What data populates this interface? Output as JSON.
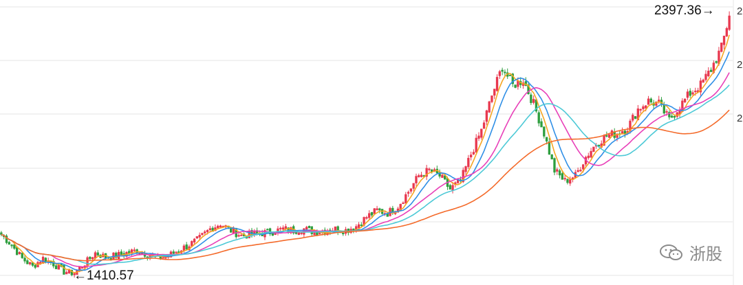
{
  "chart_data": {
    "type": "candlestick",
    "title": "",
    "xlabel": "",
    "ylabel": "",
    "ylim": [
      1370,
      2440
    ],
    "y_ticks_visible": [
      "2",
      "2",
      "2"
    ],
    "grid": true,
    "annotations": [
      {
        "text": "2397.36→",
        "value": 2397.36,
        "kind": "high"
      },
      {
        "text": "←1410.57",
        "value": 1410.57,
        "kind": "low"
      }
    ],
    "series_colors": {
      "up": "#e8384f",
      "down": "#2e9e3f",
      "ma_fast": "#f5a623",
      "ma_mid1": "#2f8fe6",
      "ma_mid2": "#e83fb8",
      "ma_mid3": "#4cc9d6",
      "ma_slow": "#f46a2a"
    },
    "ohlc_anchors": [
      {
        "t": 0,
        "c": 1560
      },
      {
        "t": 4,
        "c": 1520
      },
      {
        "t": 8,
        "c": 1470
      },
      {
        "t": 12,
        "c": 1440
      },
      {
        "t": 16,
        "c": 1470
      },
      {
        "t": 20,
        "c": 1450
      },
      {
        "t": 24,
        "c": 1420
      },
      {
        "t": 28,
        "c": 1415
      },
      {
        "t": 32,
        "c": 1450
      },
      {
        "t": 36,
        "c": 1490
      },
      {
        "t": 40,
        "c": 1475
      },
      {
        "t": 44,
        "c": 1480
      },
      {
        "t": 48,
        "c": 1490
      },
      {
        "t": 52,
        "c": 1500
      },
      {
        "t": 56,
        "c": 1485
      },
      {
        "t": 60,
        "c": 1470
      },
      {
        "t": 64,
        "c": 1480
      },
      {
        "t": 68,
        "c": 1500
      },
      {
        "t": 72,
        "c": 1520
      },
      {
        "t": 76,
        "c": 1545
      },
      {
        "t": 80,
        "c": 1580
      },
      {
        "t": 84,
        "c": 1600
      },
      {
        "t": 88,
        "c": 1575
      },
      {
        "t": 92,
        "c": 1555
      },
      {
        "t": 96,
        "c": 1560
      },
      {
        "t": 100,
        "c": 1565
      },
      {
        "t": 104,
        "c": 1570
      },
      {
        "t": 108,
        "c": 1580
      },
      {
        "t": 112,
        "c": 1575
      },
      {
        "t": 116,
        "c": 1580
      },
      {
        "t": 120,
        "c": 1570
      },
      {
        "t": 124,
        "c": 1575
      },
      {
        "t": 128,
        "c": 1580
      },
      {
        "t": 132,
        "c": 1575
      },
      {
        "t": 136,
        "c": 1590
      },
      {
        "t": 140,
        "c": 1625
      },
      {
        "t": 144,
        "c": 1650
      },
      {
        "t": 148,
        "c": 1640
      },
      {
        "t": 152,
        "c": 1665
      },
      {
        "t": 156,
        "c": 1720
      },
      {
        "t": 160,
        "c": 1780
      },
      {
        "t": 164,
        "c": 1800
      },
      {
        "t": 168,
        "c": 1780
      },
      {
        "t": 172,
        "c": 1730
      },
      {
        "t": 176,
        "c": 1760
      },
      {
        "t": 180,
        "c": 1860
      },
      {
        "t": 184,
        "c": 1950
      },
      {
        "t": 188,
        "c": 2080
      },
      {
        "t": 192,
        "c": 2190
      },
      {
        "t": 196,
        "c": 2120
      },
      {
        "t": 200,
        "c": 2140
      },
      {
        "t": 204,
        "c": 2050
      },
      {
        "t": 208,
        "c": 1940
      },
      {
        "t": 212,
        "c": 1800
      },
      {
        "t": 216,
        "c": 1760
      },
      {
        "t": 220,
        "c": 1780
      },
      {
        "t": 224,
        "c": 1850
      },
      {
        "t": 228,
        "c": 1900
      },
      {
        "t": 232,
        "c": 1930
      },
      {
        "t": 236,
        "c": 1940
      },
      {
        "t": 240,
        "c": 1960
      },
      {
        "t": 244,
        "c": 2030
      },
      {
        "t": 248,
        "c": 2060
      },
      {
        "t": 252,
        "c": 2050
      },
      {
        "t": 256,
        "c": 1990
      },
      {
        "t": 260,
        "c": 2040
      },
      {
        "t": 264,
        "c": 2090
      },
      {
        "t": 268,
        "c": 2120
      },
      {
        "t": 272,
        "c": 2180
      },
      {
        "t": 276,
        "c": 2260
      },
      {
        "t": 279,
        "c": 2380
      }
    ]
  },
  "watermark": {
    "text": "浙股",
    "icon": "wechat-bubble-icon"
  }
}
